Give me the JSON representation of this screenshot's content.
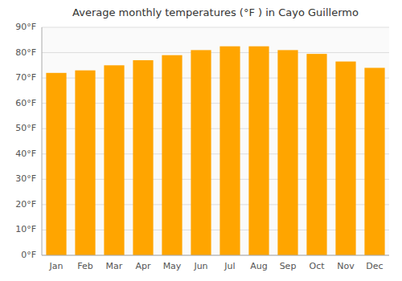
{
  "chart_data": {
    "type": "bar",
    "title": "Average monthly temperatures (°F ) in Cayo Guillermo",
    "categories": [
      "Jan",
      "Feb",
      "Mar",
      "Apr",
      "May",
      "Jun",
      "Jul",
      "Aug",
      "Sep",
      "Oct",
      "Nov",
      "Dec"
    ],
    "values": [
      72,
      73,
      75,
      77,
      79,
      81,
      82.5,
      82.5,
      81,
      79.5,
      76.5,
      74
    ],
    "color": "#FFA500",
    "ylim": [
      0,
      90
    ],
    "yticks": [
      {
        "value": 0,
        "label": "0°F"
      },
      {
        "value": 10,
        "label": "10°F"
      },
      {
        "value": 20,
        "label": "20°F"
      },
      {
        "value": 30,
        "label": "30°F"
      },
      {
        "value": 40,
        "label": "40°F"
      },
      {
        "value": 50,
        "label": "50°F"
      },
      {
        "value": 60,
        "label": "60°F"
      },
      {
        "value": 70,
        "label": "70°F"
      },
      {
        "value": 80,
        "label": "80°F"
      },
      {
        "value": 90,
        "label": "90°F"
      }
    ],
    "grid": true
  }
}
